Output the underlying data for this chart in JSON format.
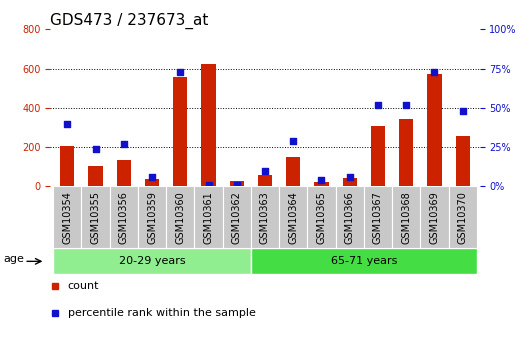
{
  "title": "GDS473 / 237673_at",
  "categories": [
    "GSM10354",
    "GSM10355",
    "GSM10356",
    "GSM10359",
    "GSM10360",
    "GSM10361",
    "GSM10362",
    "GSM10363",
    "GSM10364",
    "GSM10365",
    "GSM10366",
    "GSM10367",
    "GSM10368",
    "GSM10369",
    "GSM10370"
  ],
  "counts": [
    205,
    105,
    135,
    35,
    555,
    625,
    25,
    60,
    150,
    20,
    40,
    305,
    345,
    570,
    255
  ],
  "percentiles": [
    40,
    24,
    27,
    6,
    73,
    1,
    1,
    10,
    29,
    4,
    6,
    52,
    52,
    73,
    48
  ],
  "group_split": 7,
  "ylim_left": [
    0,
    800
  ],
  "ylim_right": [
    0,
    100
  ],
  "yticks_left": [
    0,
    200,
    400,
    600,
    800
  ],
  "yticks_right": [
    0,
    25,
    50,
    75,
    100
  ],
  "bar_color": "#cc2200",
  "dot_color": "#1111cc",
  "bg_color": "#ffffff",
  "xtick_bg_color": "#c8c8c8",
  "group1_color": "#90ee90",
  "group2_color": "#44dd44",
  "group1_label": "20-29 years",
  "group2_label": "65-71 years",
  "age_label": "age",
  "legend_count": "count",
  "legend_pct": "percentile rank within the sample",
  "title_fontsize": 11,
  "tick_fontsize": 7,
  "left_tick_color": "#cc2200",
  "right_tick_color": "#1111cc",
  "bar_width": 0.5
}
